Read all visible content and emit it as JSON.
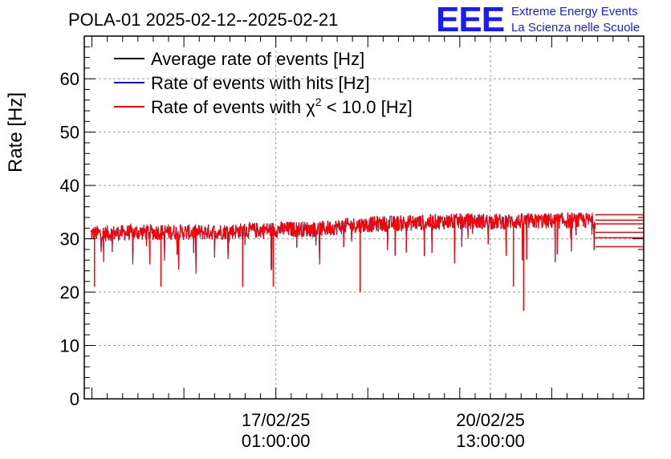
{
  "header": {
    "title": "POLA-01 2025-02-12--2025-02-21",
    "logo_mark": "EEE",
    "logo_line1": "Extreme Energy Events",
    "logo_line2": "La Scienza nelle Scuole"
  },
  "chart_data": {
    "type": "line",
    "title": "POLA-01 2025-02-12--2025-02-21",
    "ylabel": "Rate [Hz]",
    "xlabel": "",
    "ylim": [
      0,
      68
    ],
    "yticks": [
      0,
      10,
      20,
      30,
      40,
      50,
      60
    ],
    "xlim": [
      "2025-02-13 22:00:00",
      "2025-02-23 01:00:00"
    ],
    "xticks": [
      {
        "value": "2025-02-17 01:00:00",
        "label_line1": "17/02/25",
        "label_line2": "01:00:00"
      },
      {
        "value": "2025-02-20 13:00:00",
        "label_line1": "20/02/25",
        "label_line2": "13:00:00"
      }
    ],
    "grid": true,
    "legend_position": "top-left",
    "legend": [
      {
        "label": "Average rate of events [Hz]",
        "color": "#000000"
      },
      {
        "label": "Rate of events with hits [Hz]",
        "color": "#1010d0"
      },
      {
        "label_prefix": "Rate of events with ",
        "label_symbol": "χ",
        "label_sup": "2",
        "label_suffix": " < 10.0 [Hz]",
        "color": "#ff0000"
      }
    ],
    "series": [
      {
        "name": "Rate of events with χ2 < 10.0 [Hz]",
        "color": "#ff0000",
        "x": [
          "2025-02-14 06:00",
          "2025-02-14 18:00",
          "2025-02-15 06:00",
          "2025-02-15 18:00",
          "2025-02-16 06:00",
          "2025-02-16 18:00",
          "2025-02-17 06:00",
          "2025-02-17 18:00",
          "2025-02-18 06:00",
          "2025-02-18 18:00",
          "2025-02-19 06:00",
          "2025-02-19 18:00",
          "2025-02-20 06:00",
          "2025-02-20 18:00",
          "2025-02-21 06:00",
          "2025-02-21 18:00"
        ],
        "baseline": [
          31.0,
          31.2,
          31.3,
          31.2,
          31.4,
          31.6,
          31.8,
          31.8,
          32.5,
          32.8,
          33.0,
          33.2,
          33.3,
          33.2,
          33.3,
          33.4
        ],
        "band_half_width": 1.5,
        "dips": [
          {
            "x": "2025-02-14 02:00",
            "y": 21
          },
          {
            "x": "2025-02-15 04:00",
            "y": 21
          },
          {
            "x": "2025-02-16 12:00",
            "y": 21
          },
          {
            "x": "2025-02-17 00:00",
            "y": 21
          },
          {
            "x": "2025-02-18 10:00",
            "y": 20
          },
          {
            "x": "2025-02-20 22:00",
            "y": 21
          },
          {
            "x": "2025-02-21 02:00",
            "y": 16.5
          }
        ],
        "tail_levels": [
          34.5,
          33.5,
          32.8,
          31.2,
          30.2,
          28.5
        ]
      },
      {
        "name": "Average rate of events [Hz]",
        "color": "#000000",
        "hidden_behind": "Rate of events with χ2 < 10.0 [Hz]"
      },
      {
        "name": "Rate of events with hits [Hz]",
        "color": "#1010d0",
        "hidden_behind": "Rate of events with χ2 < 10.0 [Hz]"
      }
    ]
  }
}
